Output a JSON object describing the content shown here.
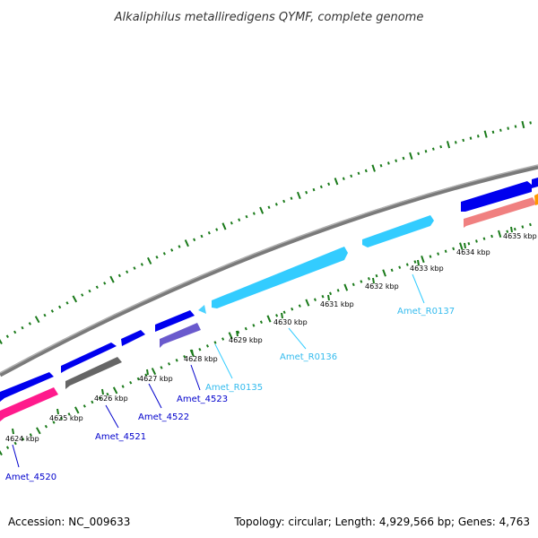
{
  "title": "Alkaliphilus metalliredigens QYMF, complete genome",
  "footer": {
    "accession": "Accession: NC_009633",
    "topology": "Topology: circular; Length: 4,929,566 bp; Genes: 4,763"
  },
  "kbp_ticks": [
    "4624 kbp",
    "4625 kbp",
    "4626 kbp",
    "4627 kbp",
    "4628 kbp",
    "4629 kbp",
    "4630 kbp",
    "4631 kbp",
    "4632 kbp",
    "4633 kbp",
    "4634 kbp",
    "4635 kbp"
  ],
  "features": [
    {
      "name": "Amet_4520",
      "type": "CDS",
      "color": "#0000ff"
    },
    {
      "name": "Amet_4521",
      "type": "CDS",
      "color": "#0000ff"
    },
    {
      "name": "Amet_4522",
      "type": "CDS",
      "color": "#0000ff"
    },
    {
      "name": "Amet_4523",
      "type": "CDS",
      "color": "#0000ff"
    },
    {
      "name": "Amet_R0135",
      "type": "rRNA",
      "color": "#33ccff"
    },
    {
      "name": "Amet_R0136",
      "type": "rRNA",
      "color": "#33ccff"
    },
    {
      "name": "Amet_R0137",
      "type": "rRNA",
      "color": "#33ccff"
    }
  ],
  "colors": {
    "backbone": "#808080",
    "cds": "#0000ff",
    "rrna": "#4dd2ff",
    "cog_pink": "#ff1a8c",
    "cog_gray": "#666666",
    "cog_purple": "#6a5acd",
    "cog_salmon": "#f08080",
    "cog_orange": "#ff9900",
    "gc_ticks": "#1a7a1a"
  }
}
